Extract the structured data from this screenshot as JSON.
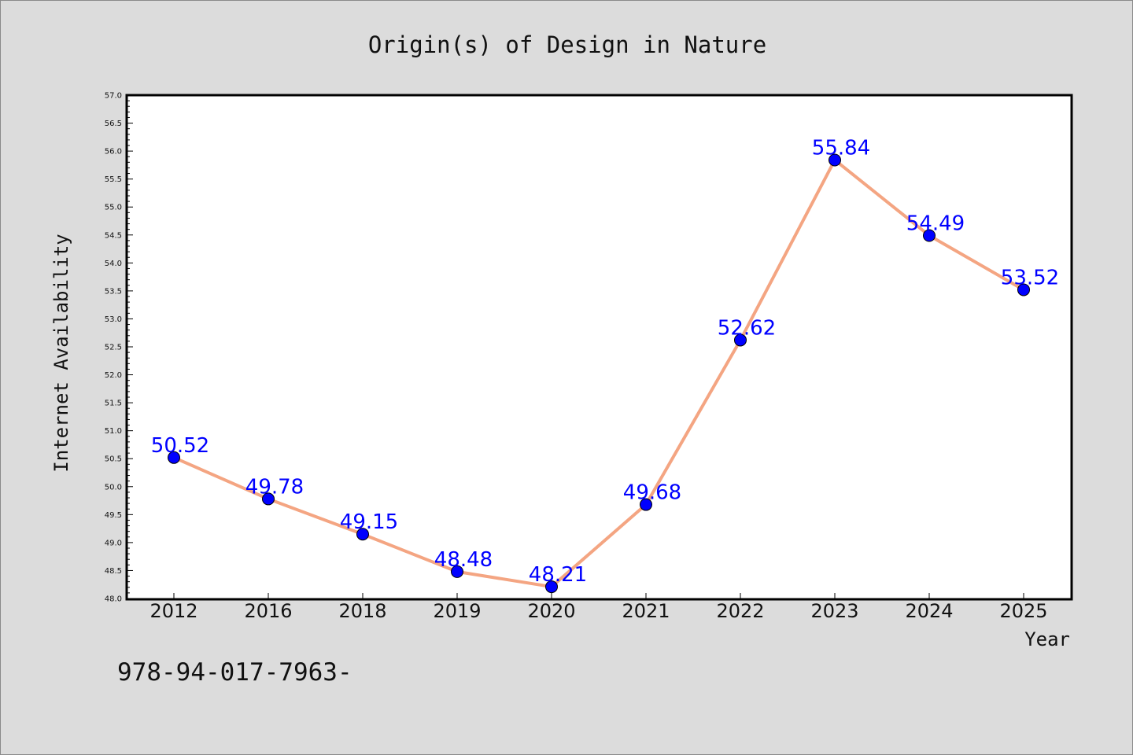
{
  "chart_data": {
    "type": "line",
    "title": "Origin(s) of Design in Nature",
    "xlabel": "Year",
    "ylabel": "Internet Availability",
    "categories": [
      "2012",
      "2016",
      "2018",
      "2019",
      "2020",
      "2021",
      "2022",
      "2023",
      "2024",
      "2025"
    ],
    "series": [
      {
        "values": [
          50.52,
          49.78,
          49.15,
          48.48,
          48.21,
          49.68,
          52.62,
          55.84,
          54.49,
          53.52
        ]
      }
    ],
    "data_labels": [
      "50.52",
      "49.78",
      "49.15",
      "48.48",
      "48.21",
      "49.68",
      "52.62",
      "55.84",
      "54.49",
      "53.52"
    ],
    "ylim": [
      48.0,
      57.0
    ],
    "yticks": [
      "48.0",
      "48.5",
      "49.0",
      "49.5",
      "50.0",
      "50.5",
      "51.0",
      "51.5",
      "52.0",
      "52.5",
      "53.0",
      "53.5",
      "54.0",
      "54.5",
      "55.0",
      "55.5",
      "56.0",
      "56.5",
      "57.0"
    ],
    "grid": false,
    "colors": {
      "line": "#f4a582",
      "marker": "#0000ff",
      "label": "#0000ff",
      "plot_bg": "#ffffff",
      "figure_bg": "#dcdcdc"
    }
  },
  "footer_text": "978-94-017-7963-"
}
